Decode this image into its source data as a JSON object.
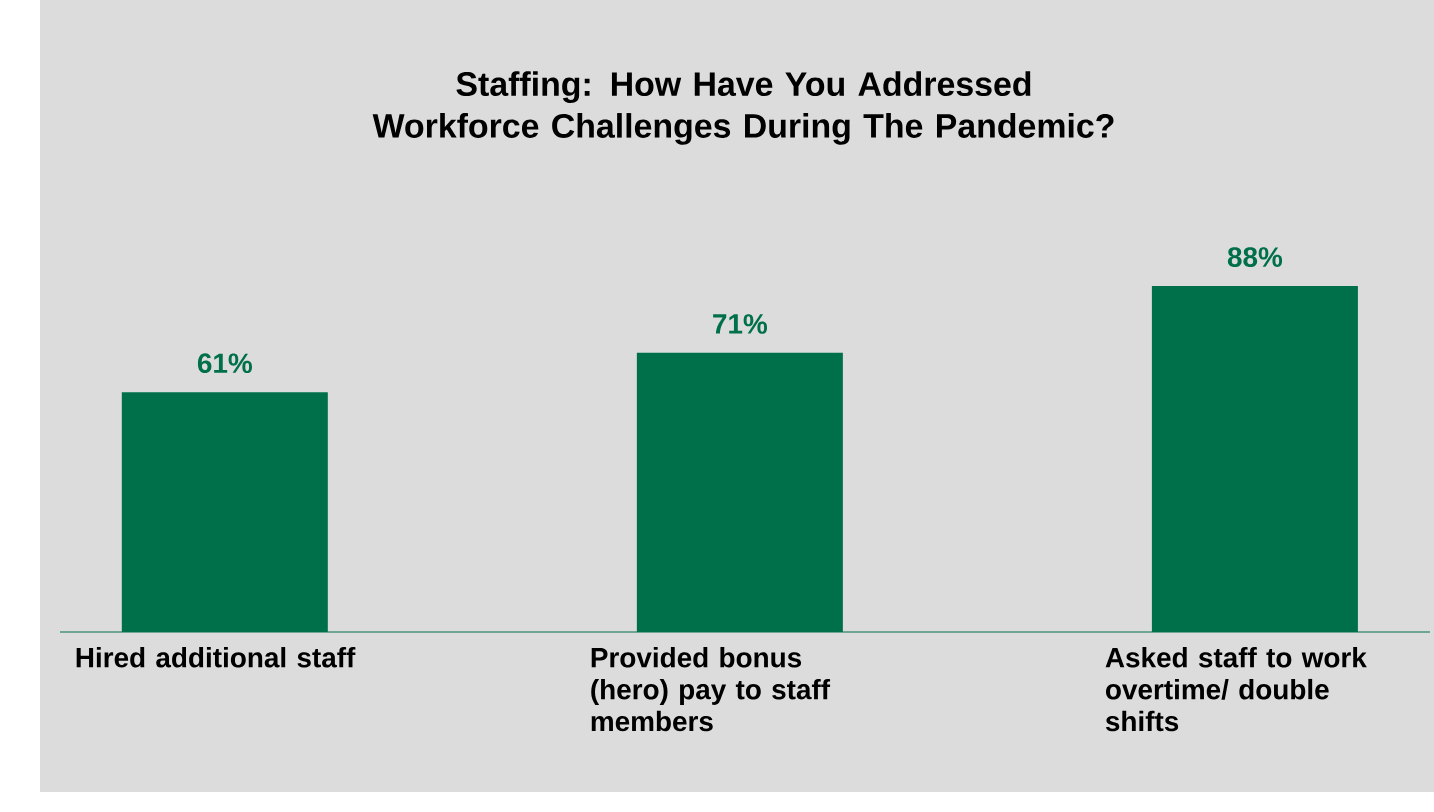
{
  "chart_data": {
    "type": "bar",
    "title": "Staffing: How Have You Addressed Workforce Challenges During The Pandemic?",
    "categories": [
      "Hired additional staff",
      "Provided bonus (hero) pay to staff members",
      "Asked staff to work overtime/ double shifts"
    ],
    "values": [
      61,
      71,
      88
    ],
    "value_labels": [
      "61%",
      "71%",
      "88%"
    ],
    "color": "#00704a"
  }
}
